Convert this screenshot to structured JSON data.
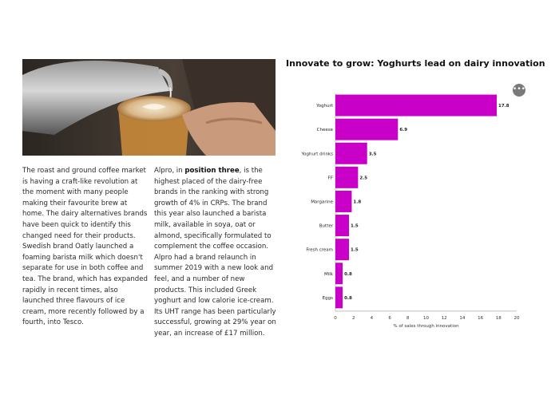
{
  "article": {
    "column1": "The roast and ground coffee market is having a craft-like revolution at the moment with many people making their favourite brew at home. The dairy alternatives brands have been quick to identify this changed need for their products. Swedish brand Oatly launched a foaming barista milk which doesn't separate for use in both coffee and tea. The brand, which has expanded rapidly in recent times, also launched three flavours of ice cream, more recently followed by a fourth, into Tesco.",
    "column2_pre": "Alpro, in ",
    "column2_bold": "position three",
    "column2_post": ", is the highest placed of the dairy-free brands in the ranking with strong growth of 4% in CRPs. The brand this year also launched a barista milk, available in soya, oat or almond, specifically formulated to complement the coffee occasion. Alpro had a brand relaunch in summer 2019 with a new look and feel, and a number of new products. This included Greek yoghurt and low calorie ice-cream. Its UHT range has been particularly successful, growing at 29% year on year, an increase of £17 million."
  },
  "more_button": "•••",
  "chart_data": {
    "type": "bar",
    "orientation": "horizontal",
    "title": "Innovate to grow: Yoghurts lead on dairy innovation",
    "xlabel": "% of sales through innovation",
    "ylabel": "",
    "categories": [
      "Yoghurt",
      "Cheese",
      "Yoghurt drinks",
      "FF",
      "Margarine",
      "Butter",
      "Fresh cream",
      "Milk",
      "Eggs"
    ],
    "values": [
      17.8,
      6.9,
      3.5,
      2.5,
      1.8,
      1.5,
      1.5,
      0.8,
      0.8
    ],
    "value_labels": [
      "17.8",
      "6.9",
      "3.5",
      "2.5",
      "1.8",
      "1.5",
      "1.5",
      "0.8",
      "0.8"
    ],
    "xlim": [
      0,
      20
    ],
    "xticks": [
      "0",
      "2",
      "4",
      "6",
      "8",
      "10",
      "12",
      "14",
      "16",
      "18",
      "20"
    ],
    "bar_color": "#c800c8",
    "grid": false,
    "legend": "none"
  }
}
